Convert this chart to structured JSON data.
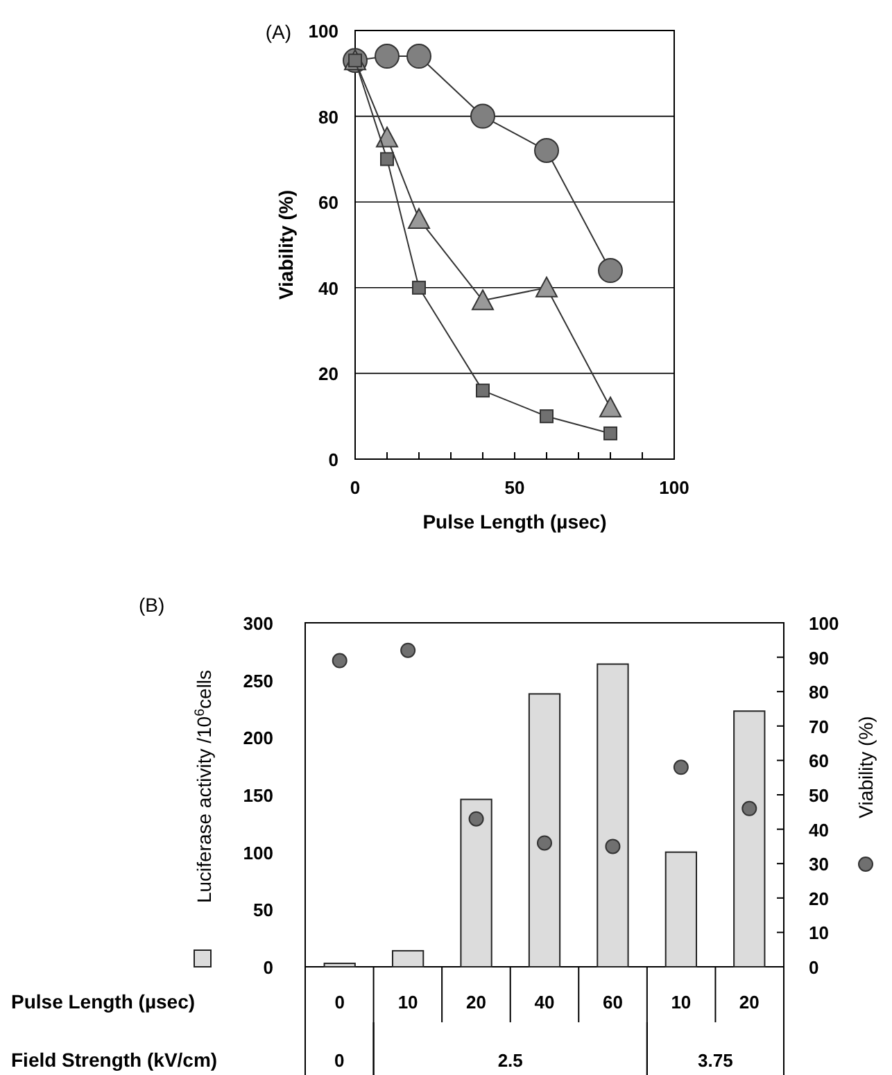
{
  "chart_data": [
    {
      "type": "line",
      "title": "(A)",
      "xlabel": "Pulse Length (µsec)",
      "ylabel": "Viability (%)",
      "x": [
        0,
        10,
        20,
        40,
        60,
        80
      ],
      "series": [
        {
          "color": "#808080",
          "marker": "circle",
          "values": [
            93,
            94,
            94,
            80,
            72,
            44
          ]
        },
        {
          "color": "#999999",
          "marker": "triangle",
          "values": [
            93,
            75,
            56,
            37,
            40,
            12
          ]
        },
        {
          "color": "#707070",
          "marker": "square",
          "values": [
            93,
            70,
            40,
            16,
            10,
            6
          ]
        }
      ],
      "xlim": [
        0,
        100
      ],
      "xticks": [
        0,
        {
          "value": 10,
          "label": null
        },
        {
          "value": 20,
          "label": null
        },
        {
          "value": 30,
          "label": null
        },
        {
          "value": 40,
          "label": null
        },
        50,
        {
          "value": 60,
          "label": null
        },
        {
          "value": 70,
          "label": null
        },
        {
          "value": 80,
          "label": null
        },
        {
          "value": 90,
          "label": null
        },
        100
      ],
      "ylim": [
        0,
        100
      ],
      "yticks": [
        0,
        20,
        40,
        60,
        80,
        100
      ],
      "grid": "y",
      "line_style": "solid"
    },
    {
      "type": "bar",
      "title": "(B)",
      "xlabel": "Pulse Length (µsec)",
      "ylabel": "Luciferase activity /10$^{6}$cells",
      "y2label": "Viability (%)",
      "categories": [
        "0",
        "10",
        "20",
        "40",
        "60",
        "10",
        "20"
      ],
      "series": [
        {
          "type": "bar",
          "color": "#dcdcdc",
          "values": [
            3,
            14,
            146,
            238,
            264,
            100,
            223
          ]
        },
        {
          "type": "scatter",
          "axis": "y2",
          "color": "#707070",
          "marker": "circle",
          "values": [
            89,
            92,
            43,
            36,
            35,
            58,
            46
          ]
        }
      ],
      "ylim": [
        0,
        300
      ],
      "yticks": [
        0,
        50,
        100,
        150,
        200,
        250,
        300
      ],
      "y2lim": [
        0,
        100
      ],
      "y2ticks": [
        0,
        10,
        20,
        30,
        40,
        50,
        60,
        70,
        80,
        90,
        100
      ],
      "annotations": [
        "Field Strength (kV/cm)",
        "0",
        "2.5",
        "3.75"
      ],
      "grid": false
    }
  ]
}
